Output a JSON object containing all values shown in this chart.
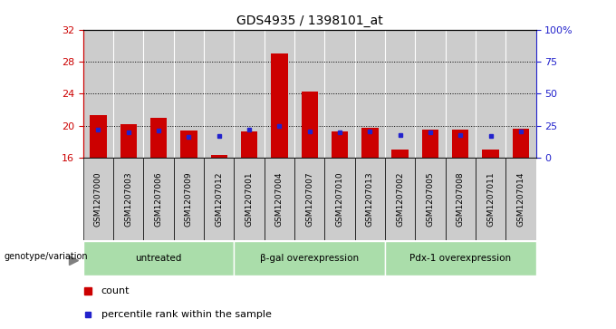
{
  "title": "GDS4935 / 1398101_at",
  "samples": [
    "GSM1207000",
    "GSM1207003",
    "GSM1207006",
    "GSM1207009",
    "GSM1207012",
    "GSM1207001",
    "GSM1207004",
    "GSM1207007",
    "GSM1207010",
    "GSM1207013",
    "GSM1207002",
    "GSM1207005",
    "GSM1207008",
    "GSM1207011",
    "GSM1207014"
  ],
  "red_values": [
    21.3,
    20.2,
    21.0,
    19.4,
    16.4,
    19.3,
    29.0,
    24.3,
    19.3,
    19.8,
    17.0,
    19.5,
    19.5,
    17.0,
    19.7
  ],
  "blue_y_values": [
    19.5,
    19.2,
    19.4,
    18.6,
    18.7,
    19.5,
    20.0,
    19.3,
    19.2,
    19.3,
    18.8,
    19.2,
    18.9,
    18.7,
    19.3
  ],
  "groups": [
    {
      "label": "untreated",
      "start": 0,
      "end": 4
    },
    {
      "label": "β-gal overexpression",
      "start": 5,
      "end": 9
    },
    {
      "label": "Pdx-1 overexpression",
      "start": 10,
      "end": 14
    }
  ],
  "y_min": 16,
  "y_max": 32,
  "y_ticks_left": [
    16,
    20,
    24,
    28,
    32
  ],
  "y_ticks_right_vals": [
    0,
    25,
    50,
    75,
    100
  ],
  "y_ticks_right_labels": [
    "0",
    "25",
    "50",
    "75",
    "100%"
  ],
  "grid_lines": [
    20,
    24,
    28
  ],
  "bar_color": "#cc0000",
  "blue_color": "#2222cc",
  "bg_color": "#cccccc",
  "group_bg_color": "#aaddaa",
  "left_axis_color": "#cc0000",
  "right_axis_color": "#2222cc"
}
